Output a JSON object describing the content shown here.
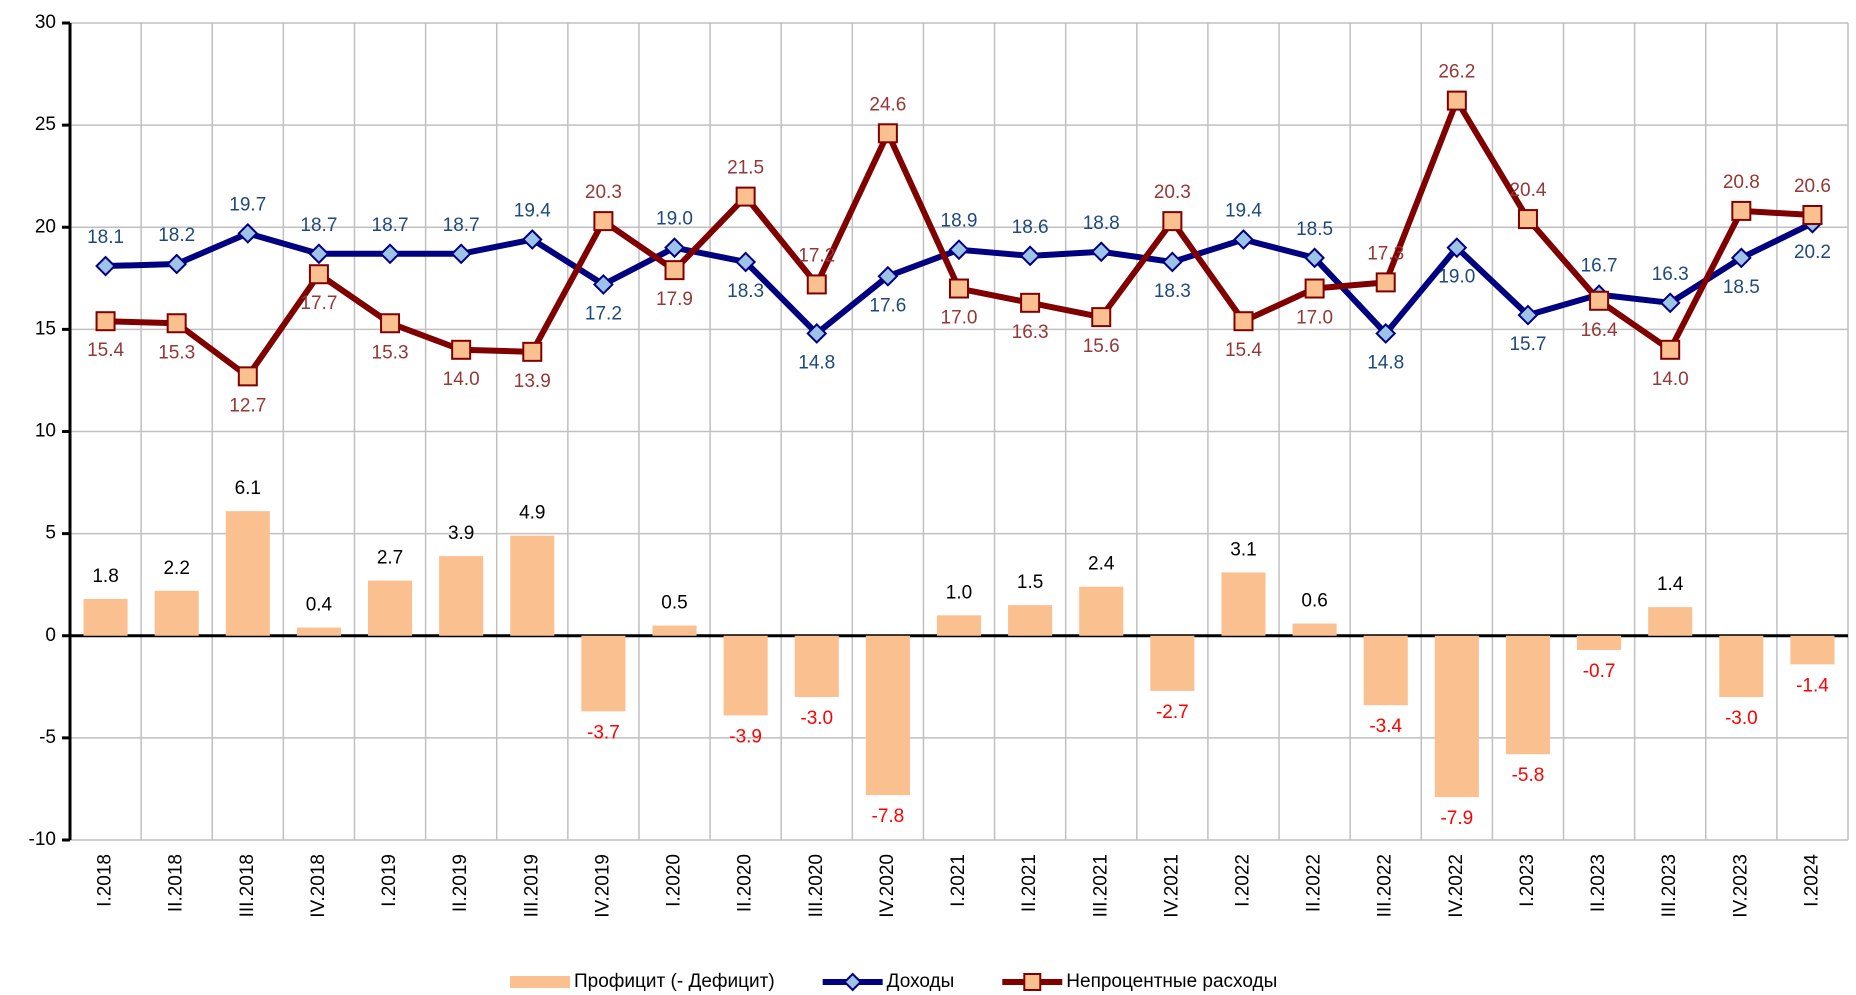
{
  "chart_data": {
    "type": "combo",
    "categories": [
      "I.2018",
      "II.2018",
      "III.2018",
      "IV.2018",
      "I.2019",
      "II.2019",
      "III.2019",
      "IV.2019",
      "I.2020",
      "II.2020",
      "III.2020",
      "IV.2020",
      "I.2021",
      "II.2021",
      "III.2021",
      "IV.2021",
      "I.2022",
      "II.2022",
      "III.2022",
      "IV.2022",
      "I.2023",
      "II.2023",
      "III.2023",
      "IV.2023",
      "I.2024"
    ],
    "series": [
      {
        "name": "Профицит (- Дефицит)",
        "type": "bar",
        "color": "#fac090",
        "label_color": "#000000",
        "negative_label_color": "#ff0000",
        "values": [
          1.8,
          2.2,
          6.1,
          0.4,
          2.7,
          3.9,
          4.9,
          -3.7,
          0.5,
          -3.9,
          -3.0,
          -7.8,
          1.0,
          1.5,
          2.4,
          -2.7,
          3.1,
          0.6,
          -3.4,
          -7.9,
          -5.8,
          -0.7,
          1.4,
          -3.0,
          -1.4
        ],
        "value_labels": [
          "1.8",
          "2.2",
          "6.1",
          "0.4",
          "2.7",
          "3.9",
          "4.9",
          "-3.7",
          "0.5",
          "-3.9",
          "-3.0",
          "-7.8",
          "1.0",
          "1.5",
          "2.4",
          "-2.7",
          "3.1",
          "0.6",
          "-3.4",
          "-7.9",
          "-5.8",
          "-0.7",
          "1.4",
          "-3.0",
          "-1.4"
        ]
      },
      {
        "name": "Доходы",
        "type": "line",
        "color": "#000080",
        "marker": "diamond",
        "marker_color": "#9dc3e6",
        "label_color": "#1f497d",
        "values": [
          18.1,
          18.2,
          19.7,
          18.7,
          18.7,
          18.7,
          19.4,
          17.2,
          19.0,
          18.3,
          14.8,
          17.6,
          18.9,
          18.6,
          18.8,
          18.3,
          19.4,
          18.5,
          14.8,
          19.0,
          15.7,
          16.7,
          16.3,
          18.5,
          20.2
        ],
        "value_labels": [
          "18.1",
          "18.2",
          "19.7",
          "18.7",
          "18.7",
          "18.7",
          "19.4",
          "17.2",
          "19.0",
          "18.3",
          "14.8",
          "17.6",
          "18.9",
          "18.6",
          "18.8",
          "18.3",
          "19.4",
          "18.5",
          "14.8",
          "19.0",
          "15.7",
          "16.7",
          "16.3",
          "18.5",
          "20.2"
        ]
      },
      {
        "name": "Непроцентные расходы",
        "type": "line",
        "color": "#800000",
        "marker": "square",
        "marker_color": "#fac090",
        "label_color": "#953735",
        "values": [
          15.4,
          15.3,
          12.7,
          17.7,
          15.3,
          14.0,
          13.9,
          20.3,
          17.9,
          21.5,
          17.2,
          24.6,
          17.0,
          16.3,
          15.6,
          20.3,
          15.4,
          17.0,
          17.3,
          26.2,
          20.4,
          16.4,
          14.0,
          20.8,
          20.6
        ],
        "value_labels": [
          "15.4",
          "15.3",
          "12.7",
          "17.7",
          "15.3",
          "14.0",
          "13.9",
          "20.3",
          "17.9",
          "21.5",
          "17.2",
          "24.6",
          "17.0",
          "16.3",
          "15.6",
          "20.3",
          "15.4",
          "17.0",
          "17.3",
          "26.2",
          "20.4",
          "16.4",
          "14.0",
          "20.8",
          "20.6"
        ]
      }
    ],
    "ylim": [
      -10,
      30
    ],
    "yticks": [
      -10,
      -5,
      0,
      5,
      10,
      15,
      20,
      25,
      30
    ],
    "grid": true
  }
}
